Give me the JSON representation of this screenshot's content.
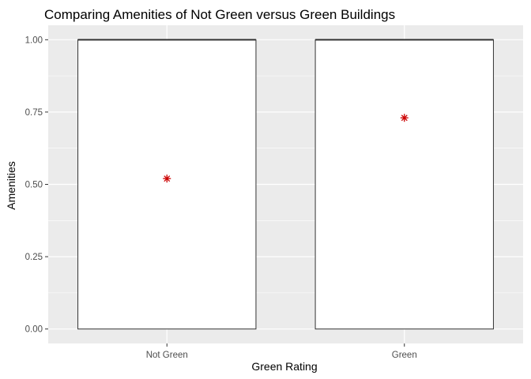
{
  "chart_data": {
    "type": "boxplot",
    "title": "Comparing Amenities of Not Green versus Green Buildings",
    "xlabel": "Green Rating",
    "ylabel": "Amenities",
    "ylim": [
      -0.05,
      1.05
    ],
    "y_ticks": [
      0,
      0.25,
      0.5,
      0.75,
      1
    ],
    "y_tick_labels": [
      "0.00",
      "0.25",
      "0.50",
      "0.75",
      "1.00"
    ],
    "categories": [
      "Not Green",
      "Green"
    ],
    "boxes": [
      {
        "category": "Not Green",
        "min": 0,
        "q1": 0,
        "median": 1,
        "q3": 1,
        "max": 1,
        "mean": 0.52
      },
      {
        "category": "Green",
        "min": 0,
        "q1": 0,
        "median": 1,
        "q3": 1,
        "max": 1,
        "mean": 0.73
      }
    ],
    "grid": true,
    "panel_background": "#ebebeb",
    "grid_color": "#ffffff",
    "box_fill": "#ffffff",
    "box_stroke": "#333333",
    "mean_marker_color": "#cc0000"
  }
}
